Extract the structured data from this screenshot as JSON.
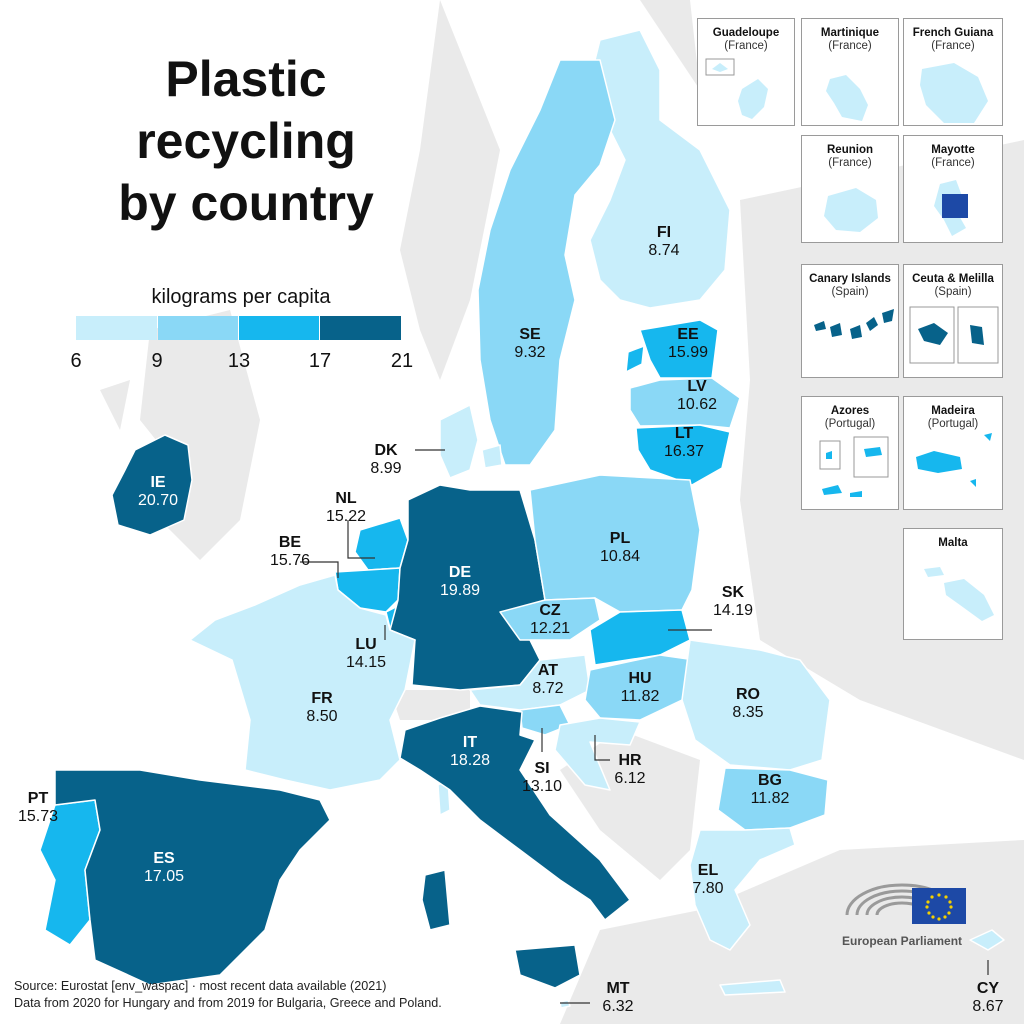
{
  "title": {
    "lines": [
      "Plastic",
      "recycling",
      "by country"
    ]
  },
  "legend": {
    "title": "kilograms per capita",
    "stops": [
      "6",
      "9",
      "13",
      "17",
      "21"
    ],
    "colors": [
      "#c8eefb",
      "#8ad8f6",
      "#16b7ee",
      "#07628a"
    ]
  },
  "colors": {
    "non_eu_land": "#eaeaea",
    "sea": "#ffffff",
    "border": "#ffffff",
    "leader": "#333333"
  },
  "countries": [
    {
      "code": "IE",
      "value": "20.70",
      "name": "ie"
    },
    {
      "code": "SE",
      "value": "9.32",
      "name": "se"
    },
    {
      "code": "FI",
      "value": "8.74",
      "name": "fi"
    },
    {
      "code": "EE",
      "value": "15.99",
      "name": "ee"
    },
    {
      "code": "LV",
      "value": "10.62",
      "name": "lv"
    },
    {
      "code": "LT",
      "value": "16.37",
      "name": "lt"
    },
    {
      "code": "DK",
      "value": "8.99",
      "name": "dk"
    },
    {
      "code": "NL",
      "value": "15.22",
      "name": "nl"
    },
    {
      "code": "BE",
      "value": "15.76",
      "name": "be"
    },
    {
      "code": "DE",
      "value": "19.89",
      "name": "de"
    },
    {
      "code": "PL",
      "value": "10.84",
      "name": "pl"
    },
    {
      "code": "CZ",
      "value": "12.21",
      "name": "cz"
    },
    {
      "code": "SK",
      "value": "14.19",
      "name": "sk"
    },
    {
      "code": "LU",
      "value": "14.15",
      "name": "lu"
    },
    {
      "code": "AT",
      "value": "8.72",
      "name": "at"
    },
    {
      "code": "HU",
      "value": "11.82",
      "name": "hu"
    },
    {
      "code": "RO",
      "value": "8.35",
      "name": "ro"
    },
    {
      "code": "FR",
      "value": "8.50",
      "name": "fr"
    },
    {
      "code": "IT",
      "value": "18.28",
      "name": "it"
    },
    {
      "code": "SI",
      "value": "13.10",
      "name": "si"
    },
    {
      "code": "HR",
      "value": "6.12",
      "name": "hr"
    },
    {
      "code": "BG",
      "value": "11.82",
      "name": "bg"
    },
    {
      "code": "PT",
      "value": "15.73",
      "name": "pt"
    },
    {
      "code": "ES",
      "value": "17.05",
      "name": "es"
    },
    {
      "code": "EL",
      "value": "7.80",
      "name": "el"
    },
    {
      "code": "MT",
      "value": "6.32",
      "name": "mt"
    },
    {
      "code": "CY",
      "value": "8.67",
      "name": "cy"
    }
  ],
  "insets": [
    {
      "name": "Guadeloupe",
      "country": "(France)"
    },
    {
      "name": "Martinique",
      "country": "(France)"
    },
    {
      "name": "French Guiana",
      "country": "(France)"
    },
    {
      "name": "Reunion",
      "country": "(France)"
    },
    {
      "name": "Mayotte",
      "country": "(France)"
    },
    {
      "name": "Canary Islands",
      "country": "(Spain)"
    },
    {
      "name": "Ceuta & Melilla",
      "country": "(Spain)"
    },
    {
      "name": "Azores",
      "country": "(Portugal)"
    },
    {
      "name": "Madeira",
      "country": "(Portugal)"
    },
    {
      "name": "Malta",
      "country": ""
    }
  ],
  "source": {
    "line1": "Source: Eurostat [env_waspac] · most recent data available (2021)",
    "line2": "Data from 2020 for Hungary and from 2019 for Bulgaria, Greece and Poland."
  },
  "logo": {
    "name": "European Parliament",
    "icon": "european-parliament-hemicycle-icon"
  }
}
